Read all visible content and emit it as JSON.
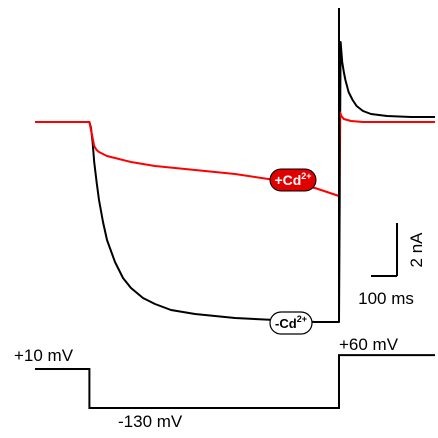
{
  "chart_data": {
    "type": "line",
    "description_units": {
      "time": "ms",
      "current": "nA",
      "voltage": "mV"
    },
    "series": [
      {
        "name": "-Cd2+",
        "color": "#000000",
        "x": [
          0,
          68,
          70,
          72,
          74,
          77,
          80,
          85,
          90,
          100,
          110,
          120,
          135,
          150,
          170,
          200,
          250,
          300,
          350,
          380,
          382,
          383,
          384,
          386,
          388,
          392,
          397,
          402,
          410,
          420,
          440,
          470,
          500
        ],
        "y": [
          0,
          0,
          -0.3,
          -1.0,
          -2.0,
          -3.0,
          -3.9,
          -5.0,
          -5.9,
          -7.0,
          -7.8,
          -8.3,
          -8.8,
          -9.1,
          -9.4,
          -9.6,
          -9.8,
          -9.9,
          -10.0,
          -10.0,
          4.0,
          3.5,
          3.0,
          2.5,
          2.1,
          1.5,
          1.1,
          0.8,
          0.55,
          0.4,
          0.3,
          0.25,
          0.25
        ]
      },
      {
        "name": "+Cd2+",
        "color": "#ff0000",
        "x": [
          0,
          68,
          70,
          72,
          74,
          77,
          80,
          90,
          100,
          120,
          150,
          200,
          250,
          300,
          350,
          380,
          381,
          383,
          386,
          395,
          410,
          450,
          500
        ],
        "y": [
          0,
          0,
          -0.4,
          -0.8,
          -1.2,
          -1.4,
          -1.5,
          -1.7,
          -1.8,
          -2.0,
          -2.2,
          -2.4,
          -2.6,
          -2.9,
          -3.3,
          -3.7,
          0.5,
          0.3,
          0.15,
          0.05,
          0.0,
          0.0,
          0.0
        ]
      }
    ],
    "voltage_protocol": {
      "x": [
        0,
        68,
        68,
        380,
        380,
        500
      ],
      "y": [
        10,
        10,
        -130,
        -130,
        60,
        60
      ]
    },
    "labels": {
      "hold": "+10 mV",
      "step": "-130 mV",
      "post": "+60 mV",
      "with_cd": "+Cd",
      "without_cd": "-Cd",
      "ion_charge": "2+"
    },
    "scale_bar": {
      "current": "2 nA",
      "time": "100 ms"
    }
  }
}
